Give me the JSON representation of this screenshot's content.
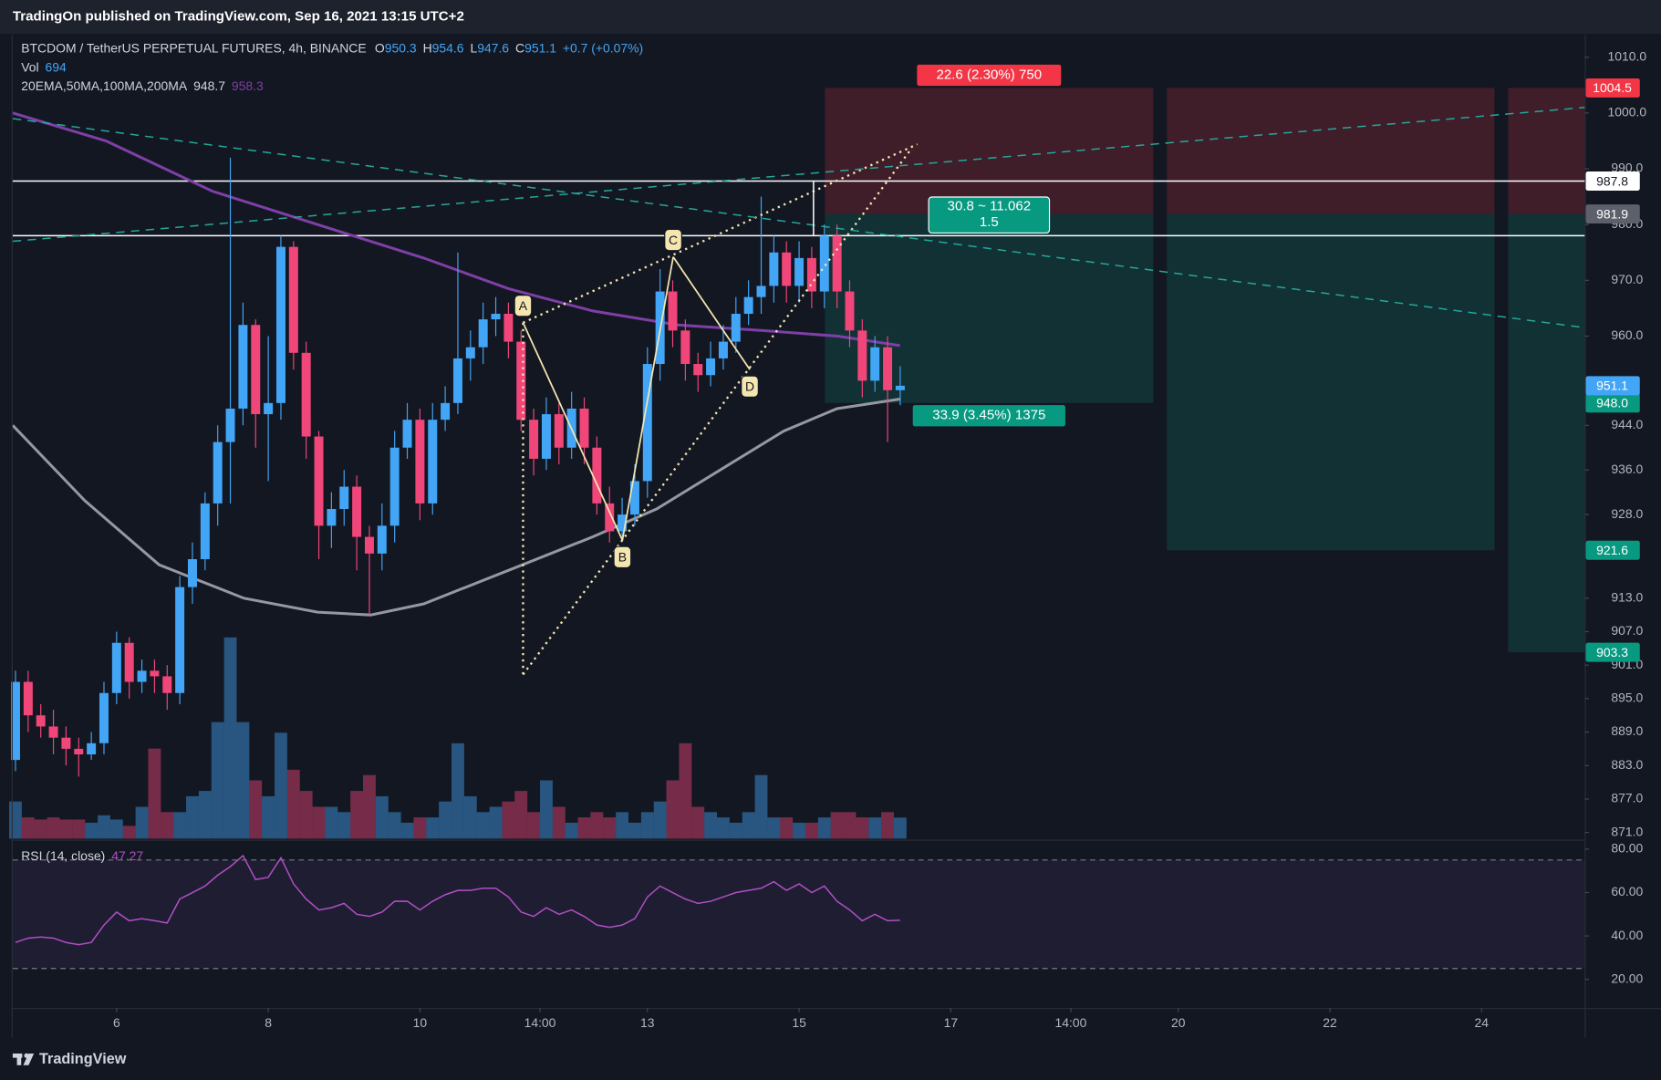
{
  "header": {
    "publisher": "TradingOn published on TradingView.com, Sep 16, 2021 13:15 UTC+2"
  },
  "footer": {
    "brand": "TradingView"
  },
  "chart_data": {
    "type": "candlestick",
    "title": "BTCDOM / TetherUS PERPETUAL FUTURES, 4h, BINANCE",
    "ohlc_labels": [
      "O",
      "H",
      "L",
      "C"
    ],
    "change": "+0.7 (+0.07%)",
    "up_color": "#42a5f5",
    "down_color": "#f0467a",
    "x": [
      4.6667,
      4.8333,
      5,
      5.1667,
      5.3333,
      5.5,
      5.6667,
      5.8333,
      6,
      6.1667,
      6.3333,
      6.5,
      6.6667,
      6.8333,
      7,
      7.1667,
      7.3333,
      7.5,
      7.6667,
      7.8333,
      8,
      8.1667,
      8.3333,
      8.5,
      8.6667,
      8.8333,
      9,
      9.1667,
      9.3333,
      9.5,
      9.6667,
      9.8333,
      10,
      10.1667,
      10.3333,
      10.5,
      10.6667,
      10.8333,
      11,
      11.1667,
      11.3333,
      11.5,
      11.6667,
      11.8333,
      12,
      12.1667,
      12.3333,
      12.5,
      12.6667,
      12.8333,
      13,
      13.1667,
      13.3333,
      13.5,
      13.6667,
      13.8333,
      14,
      14.1667,
      14.3333,
      14.5,
      14.6667,
      14.8333,
      15,
      15.1667,
      15.3333,
      15.5,
      15.6667,
      15.8333,
      16,
      16.1667,
      16.3333
    ],
    "open": [
      884,
      898,
      892,
      890,
      888,
      886,
      885,
      887,
      896,
      905,
      898,
      900,
      899,
      896,
      915,
      920,
      930,
      941,
      947,
      962,
      946,
      948,
      976,
      957,
      942,
      926,
      929,
      933,
      924,
      921,
      926,
      940,
      945,
      930,
      945,
      948,
      956,
      958,
      963,
      964,
      959,
      945,
      938,
      946,
      940,
      947,
      940,
      930,
      925,
      928,
      934,
      955,
      968,
      961,
      955,
      953,
      956,
      959,
      964,
      967,
      969,
      975,
      969,
      974,
      968,
      978,
      968,
      961,
      952,
      958,
      950.3
    ],
    "high": [
      900,
      900,
      894,
      893,
      890,
      888,
      889,
      898,
      907,
      906,
      902,
      902,
      901,
      917,
      923,
      932,
      944,
      992,
      966,
      963,
      960,
      978,
      977,
      959,
      943,
      932,
      936,
      935,
      926,
      930,
      943,
      948,
      947,
      948,
      951,
      975,
      961,
      966,
      967,
      966,
      961,
      947,
      949,
      948,
      950,
      949,
      942,
      933,
      931,
      937,
      958,
      972,
      970,
      963,
      957,
      959,
      962,
      967,
      970,
      985,
      978,
      977,
      977,
      976,
      980,
      980,
      970,
      963,
      960,
      960,
      954.6
    ],
    "low": [
      882,
      889,
      888,
      885,
      883,
      881,
      884,
      885,
      894,
      895,
      896,
      896,
      893,
      894,
      912,
      918,
      926,
      930,
      944,
      940,
      934,
      945,
      954,
      938,
      920,
      922,
      926,
      918,
      910,
      918,
      923,
      938,
      927,
      928,
      943,
      946,
      952,
      955,
      960,
      956,
      943,
      935,
      936,
      937,
      938,
      937,
      928,
      923,
      924,
      926,
      931,
      952,
      958,
      952,
      950,
      951,
      954,
      957,
      962,
      964,
      966,
      966,
      966,
      965,
      965,
      965,
      958,
      949,
      950,
      941,
      947.6
    ],
    "close": [
      898,
      892,
      890,
      888,
      886,
      885,
      887,
      896,
      905,
      898,
      900,
      899,
      896,
      915,
      920,
      930,
      941,
      947,
      962,
      946,
      948,
      976,
      957,
      942,
      926,
      929,
      933,
      924,
      921,
      926,
      940,
      945,
      930,
      945,
      948,
      956,
      958,
      963,
      964,
      959,
      945,
      938,
      946,
      940,
      947,
      940,
      930,
      925,
      928,
      934,
      955,
      968,
      961,
      955,
      953,
      956,
      959,
      964,
      967,
      969,
      975,
      969,
      974,
      968,
      978,
      968,
      961,
      952,
      958,
      950.3,
      951.1
    ],
    "xlim": [
      4.63,
      25.36
    ],
    "xticks": [
      6,
      8,
      10,
      {
        "value": 11.5833,
        "label": "14:00"
      },
      13,
      15,
      17,
      {
        "value": 18.5833,
        "label": "14:00"
      },
      20,
      22,
      24
    ],
    "ylim": [
      869.9,
      1014
    ],
    "yticks": [
      {
        "value": 1010,
        "label": "1010.0"
      },
      {
        "value": 1000,
        "label": "1000.0"
      },
      {
        "value": 990,
        "label": "990.0"
      },
      {
        "value": 980,
        "label": "980.0"
      },
      {
        "value": 970,
        "label": "970.0"
      },
      {
        "value": 960,
        "label": "960.0"
      },
      {
        "value": 944,
        "label": "944.0"
      },
      {
        "value": 936,
        "label": "936.0"
      },
      {
        "value": 928,
        "label": "928.0"
      },
      {
        "value": 913,
        "label": "913.0"
      },
      {
        "value": 907,
        "label": "907.0"
      },
      {
        "value": 901,
        "label": "901.0"
      },
      {
        "value": 895,
        "label": "895.0"
      },
      {
        "value": 889,
        "label": "889.0"
      },
      {
        "value": 883,
        "label": "883.0"
      },
      {
        "value": 877,
        "label": "877.0"
      },
      {
        "value": 871,
        "label": "871.0"
      }
    ],
    "volume": {
      "name": "Vol",
      "values": [
        1225,
        700,
        630,
        700,
        630,
        630,
        525,
        770,
        630,
        420,
        1050,
        2975,
        875,
        875,
        1400,
        1575,
        3850,
        6650,
        3850,
        1925,
        1400,
        3500,
        2275,
        1575,
        1050,
        1050,
        875,
        1575,
        2100,
        1400,
        875,
        525,
        700,
        700,
        1225,
        3150,
        1400,
        875,
        1050,
        1225,
        1575,
        875,
        1925,
        1050,
        525,
        700,
        875,
        700,
        875,
        525,
        875,
        1225,
        1925,
        3150,
        1050,
        875,
        700,
        525,
        875,
        2100,
        700,
        700,
        525,
        525,
        700,
        875,
        875,
        700,
        700,
        875,
        694
      ]
    },
    "moving_averages": {
      "name": "20EMA,50MA,100MA,200MA",
      "series": [
        {
          "color": "#9598a1",
          "x": [
            4.63,
            5.58,
            6.56,
            7.68,
            8.65,
            9.35,
            10.05,
            11.17,
            12.28,
            13.12,
            13.96,
            14.8,
            15.5,
            16.33
          ],
          "values": [
            944,
            930.5,
            919,
            913,
            910.5,
            910,
            912,
            918,
            924,
            929,
            936,
            943,
            947,
            948.7
          ]
        },
        {
          "color": "#7e3fa6",
          "x": [
            4.63,
            5.86,
            7.26,
            8.65,
            10.05,
            11.17,
            12.28,
            13.4,
            14.52,
            15.5,
            16.33
          ],
          "values": [
            1000,
            995,
            986,
            980,
            974,
            968.5,
            964.5,
            962,
            961,
            960,
            958.3
          ]
        }
      ]
    },
    "rsi": {
      "name": "RSI (14, close)",
      "color": "#b04fc4",
      "ylim": [
        6.8,
        83.4
      ],
      "yticks": [
        {
          "value": 80,
          "label": "80.00"
        },
        {
          "value": 60,
          "label": "60.00"
        },
        {
          "value": 40,
          "label": "40.00"
        },
        {
          "value": 20,
          "label": "20.00"
        }
      ],
      "bands": [
        75,
        25
      ],
      "values": [
        37,
        39,
        39.5,
        39,
        37,
        36,
        37,
        45,
        51,
        47,
        48,
        47,
        46,
        57,
        60,
        63,
        68,
        72,
        77,
        66,
        67,
        76,
        64,
        57,
        52,
        53,
        55,
        50,
        49,
        51,
        56,
        56,
        52,
        56,
        59,
        61,
        61,
        62,
        62,
        58,
        51,
        49,
        53,
        50,
        52,
        49,
        45,
        44,
        45,
        48,
        58,
        63,
        60,
        57,
        55,
        56,
        58,
        60,
        61,
        62,
        65,
        61,
        64,
        60,
        63,
        56,
        52,
        47,
        50,
        47,
        47.27
      ]
    },
    "hlines": [
      987.8,
      978
    ],
    "positions": {
      "stop": 1004.5,
      "entry": 981.9,
      "stop_color": "#f23645",
      "target_color": "#089981",
      "entry_color": "#5d606b",
      "boxes": [
        {
          "x": [
            15.34,
            19.67
          ],
          "target": {
            "value": 948,
            "label": "948.0"
          }
        },
        {
          "x": [
            19.85,
            24.17
          ],
          "target": 921.6
        },
        {
          "x": [
            24.35,
            25.36
          ],
          "target": 903.3
        }
      ],
      "labels": {
        "risk": "22.6 (2.30%) 750",
        "ratio": [
          "30.8 ~ 11.062",
          "1.5"
        ],
        "reward": "33.9 (3.45%) 1375"
      }
    },
    "pattern": {
      "color": "#f5e6b0",
      "points": [
        {
          "label": "A",
          "x": 11.36,
          "y": 962.4
        },
        {
          "label": "B",
          "x": 12.67,
          "y": 923.4
        },
        {
          "label": "C",
          "x": 13.34,
          "y": 974.2
        },
        {
          "label": "D",
          "x": 14.35,
          "y": 954
        }
      ]
    },
    "trendlines": [
      {
        "style": "dotted",
        "color": "#f5e6b0",
        "points": [
          [
            11.36,
            962.4
          ],
          [
            16.56,
            994.4
          ]
        ]
      },
      {
        "style": "dotted",
        "color": "#f5e6b0",
        "points": [
          [
            11.36,
            899.3
          ],
          [
            16.48,
            993.6
          ]
        ]
      },
      {
        "style": "dotted",
        "color": "#f5e6b0",
        "points": [
          [
            11.36,
            962.4
          ],
          [
            11.36,
            899.3
          ]
        ]
      },
      {
        "style": "dashed",
        "color": "#26a69a",
        "points": [
          [
            4.63,
            999
          ],
          [
            25.36,
            961.5
          ]
        ]
      },
      {
        "style": "dashed",
        "color": "#26a69a",
        "points": [
          [
            4.63,
            977
          ],
          [
            25.36,
            1001
          ]
        ]
      },
      {
        "style": "solid",
        "color": "#ffffff",
        "points": [
          [
            15.19,
            987.8
          ],
          [
            15.19,
            978
          ]
        ]
      }
    ]
  }
}
